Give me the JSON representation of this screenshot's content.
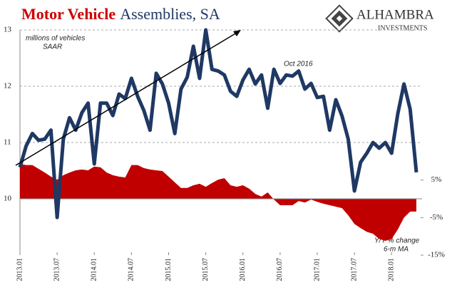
{
  "chart_data": {
    "type": "combo",
    "title": [
      "Motor Vehicle",
      "Assemblies, SA"
    ],
    "title_colors": [
      "#cc0000",
      "#1f3864"
    ],
    "logo": [
      "ALHAMBRA",
      "INVESTMENTS"
    ],
    "annotations": [
      "millions of vehicles",
      "SAAR",
      "Oct 2016",
      "Y/Y % change",
      "6-m MA"
    ],
    "categories": [
      "2013.01",
      null,
      null,
      null,
      null,
      null,
      "2013.07",
      null,
      null,
      null,
      null,
      null,
      "2014.01",
      null,
      null,
      null,
      null,
      null,
      "2014.07",
      null,
      null,
      null,
      null,
      null,
      "2015.01",
      null,
      null,
      null,
      null,
      null,
      "2015.07",
      null,
      null,
      null,
      null,
      null,
      "2016.01",
      null,
      null,
      null,
      null,
      null,
      "2016.07",
      null,
      null,
      null,
      null,
      null,
      "2017.01",
      null,
      null,
      null,
      null,
      null,
      "2017.07",
      null,
      null,
      null,
      null,
      null,
      "2018.01",
      null,
      null,
      null,
      null
    ],
    "series": [
      {
        "type": "area",
        "axis": "y2",
        "color": "#c00000",
        "values": [
          9.3,
          9.0,
          9.0,
          8.0,
          7.0,
          5.9,
          5.1,
          6.3,
          7.0,
          7.6,
          7.8,
          7.6,
          8.6,
          8.4,
          7.0,
          6.3,
          5.9,
          5.7,
          9.0,
          9.0,
          8.2,
          7.8,
          7.6,
          7.4,
          5.9,
          4.4,
          2.9,
          2.9,
          3.6,
          4.0,
          3.2,
          4.2,
          5.1,
          5.5,
          3.6,
          3.2,
          3.6,
          2.7,
          1.3,
          0.6,
          1.7,
          -0.2,
          -1.7,
          -1.7,
          -1.7,
          -0.6,
          -1.0,
          -0.2,
          -0.8,
          -1.3,
          -1.7,
          -2.1,
          -2.5,
          -4.4,
          -6.7,
          -7.8,
          -8.8,
          -9.3,
          -10.7,
          -11.2,
          -10.7,
          -8.2,
          -5.0,
          -3.4,
          -3.4
        ]
      },
      {
        "type": "line",
        "axis": "y",
        "color": "#1f3864",
        "values": [
          10.56,
          10.94,
          11.16,
          11.04,
          11.06,
          11.22,
          9.67,
          11.06,
          11.44,
          11.22,
          11.53,
          11.7,
          10.62,
          11.7,
          11.7,
          11.48,
          11.86,
          11.78,
          12.14,
          11.82,
          11.57,
          11.22,
          12.23,
          12.04,
          11.7,
          11.16,
          11.95,
          12.16,
          12.71,
          12.14,
          13.0,
          12.3,
          12.27,
          12.2,
          11.91,
          11.82,
          12.11,
          12.3,
          12.04,
          12.2,
          11.61,
          12.3,
          12.05,
          12.2,
          12.18,
          12.27,
          11.95,
          12.05,
          11.8,
          11.82,
          11.22,
          11.76,
          11.47,
          11.06,
          10.14,
          10.65,
          10.81,
          11.0,
          10.9,
          11.0,
          10.81,
          11.51,
          12.04,
          11.59,
          10.47
        ]
      }
    ],
    "ylim": [
      9,
      13
    ],
    "yticks": [
      10,
      11,
      12,
      13
    ],
    "y2lim": [
      -15,
      45
    ],
    "y2ticks": [
      {
        "value": 5,
        "label": "5%"
      },
      {
        "value": -5,
        "label": "-5%"
      },
      {
        "value": -15,
        "label": "-15%"
      }
    ],
    "grid": true
  }
}
